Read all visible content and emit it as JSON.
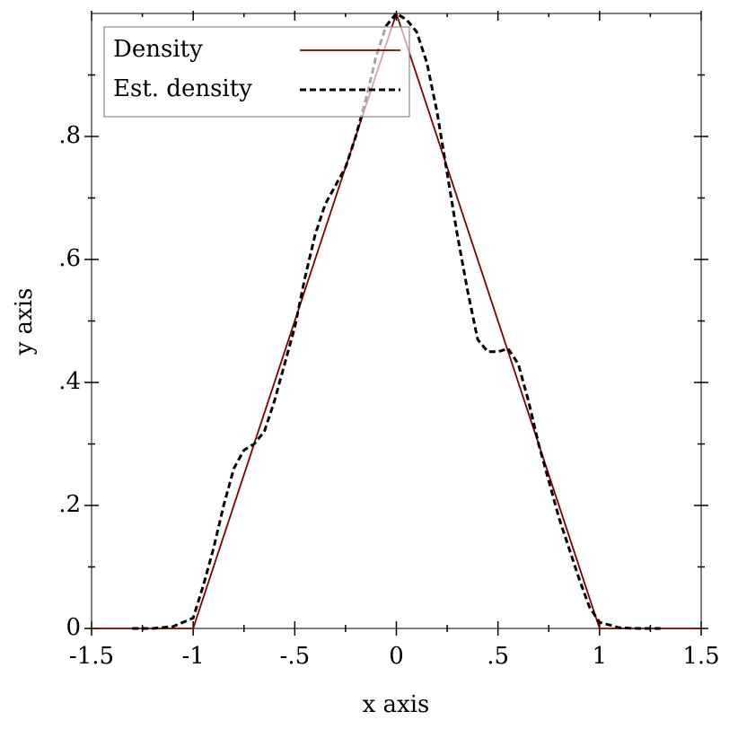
{
  "chart_data": {
    "type": "line",
    "xlabel": "x axis",
    "ylabel": "y axis",
    "xlim": [
      -1.5,
      1.5
    ],
    "ylim": [
      0,
      1
    ],
    "xticks": [
      -1.5,
      -1,
      {
        "value": -0.5,
        "label": "-.5"
      },
      0,
      {
        "value": 0.5,
        "label": ".5"
      },
      1,
      1.5
    ],
    "yticks": [
      0,
      {
        "value": 0.2,
        "label": ".2"
      },
      {
        "value": 0.4,
        "label": ".4"
      },
      {
        "value": 0.6,
        "label": ".6"
      },
      {
        "value": 0.8,
        "label": ".8"
      }
    ],
    "xminorticks": [
      -1.25,
      -0.75,
      -0.25,
      0.25,
      0.75,
      1.25
    ],
    "yminorticks": [
      0.1,
      0.3,
      0.5,
      0.7,
      0.9
    ],
    "legend": "top-left",
    "series": [
      {
        "name": "Density",
        "color": "#800000",
        "dash": false,
        "x": [
          -1.5,
          -1,
          0,
          1,
          1.5
        ],
        "values": [
          0,
          0,
          1,
          0,
          0
        ]
      },
      {
        "name": "Est. density",
        "color": "#000000",
        "dash": true,
        "x": [
          -1.3,
          -1.2,
          -1.1,
          -1.0,
          -0.95,
          -0.9,
          -0.85,
          -0.8,
          -0.75,
          -0.7,
          -0.65,
          -0.6,
          -0.55,
          -0.5,
          -0.45,
          -0.4,
          -0.35,
          -0.3,
          -0.25,
          -0.2,
          -0.15,
          -0.1,
          -0.05,
          0,
          0.05,
          0.1,
          0.15,
          0.2,
          0.25,
          0.3,
          0.35,
          0.4,
          0.45,
          0.5,
          0.55,
          0.6,
          0.65,
          0.7,
          0.75,
          0.8,
          0.85,
          0.9,
          0.95,
          1.0,
          1.1,
          1.2,
          1.3
        ],
        "values": [
          0,
          0,
          0.003,
          0.017,
          0.07,
          0.13,
          0.2,
          0.26,
          0.29,
          0.3,
          0.32,
          0.37,
          0.43,
          0.49,
          0.57,
          0.64,
          0.69,
          0.72,
          0.75,
          0.8,
          0.86,
          0.93,
          0.98,
          1.0,
          0.99,
          0.97,
          0.92,
          0.84,
          0.74,
          0.64,
          0.55,
          0.47,
          0.45,
          0.45,
          0.455,
          0.43,
          0.37,
          0.3,
          0.24,
          0.18,
          0.13,
          0.08,
          0.035,
          0.01,
          0.001,
          0,
          0
        ]
      }
    ]
  }
}
